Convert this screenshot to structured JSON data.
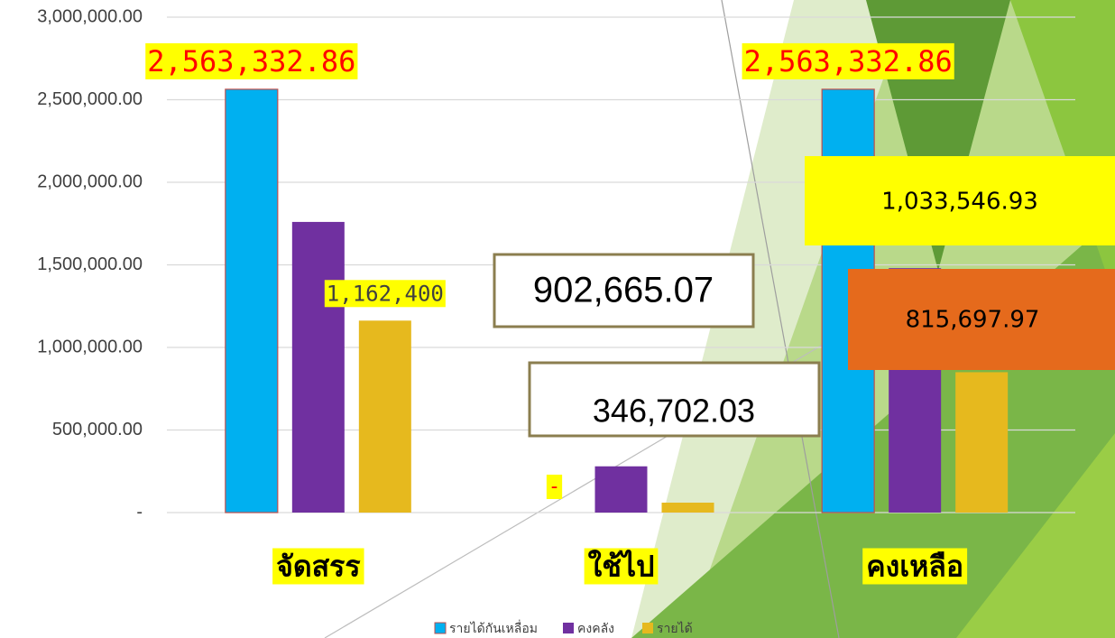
{
  "chart_data": {
    "type": "bar",
    "categories": [
      "จัดสรร",
      "ใช้ไป",
      "คงเหลือ"
    ],
    "series": [
      {
        "name": "รายได้กันเหลื่อม",
        "color": "#00b0f0",
        "values": [
          2563332.86,
          0,
          2563332.86
        ],
        "value_labels": [
          "2,563,332.86",
          "-",
          "2,563,332.86"
        ]
      },
      {
        "name": "คงคลัง",
        "color": "#7030a0",
        "values": [
          1760000,
          280000,
          1480000
        ]
      },
      {
        "name": "รายได้",
        "color": "#e6b91e",
        "values": [
          1162400,
          60000,
          850000
        ],
        "value_labels": [
          "1,162,400",
          null,
          null
        ]
      }
    ],
    "ylim": [
      0,
      3000000
    ],
    "yticks": [
      {
        "value": 0,
        "label": "-"
      },
      {
        "value": 500000,
        "label": "500,000.00"
      },
      {
        "value": 1000000,
        "label": "1,000,000.00"
      },
      {
        "value": 1500000,
        "label": "1,500,000.00"
      },
      {
        "value": 2000000,
        "label": "2,000,000.00"
      },
      {
        "value": 2500000,
        "label": "2,500,000.00"
      },
      {
        "value": 3000000,
        "label": "3,000,000.00"
      }
    ],
    "grid": true,
    "annotations": [
      "902,665.07",
      "346,702.03",
      "1,033,546.93",
      "815,697.97"
    ]
  }
}
